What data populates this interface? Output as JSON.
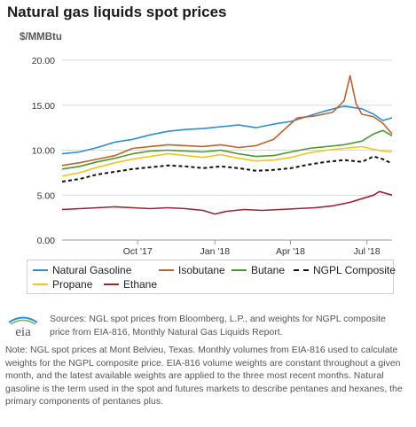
{
  "title": "Natural gas liquids spot prices",
  "unit_label": "$/MMBtu",
  "chart_data": {
    "type": "line",
    "title": "Natural gas liquids spot prices",
    "ylabel": "$/MMBtu",
    "xlabel": "",
    "ylim": [
      0,
      20
    ],
    "yticks": [
      "0.00",
      "5.00",
      "10.00",
      "15.00",
      "20.00"
    ],
    "x_range": [
      "2017-07-03",
      "2018-07-31"
    ],
    "xticks": [
      {
        "date": "2017-10-01",
        "label": "Oct '17"
      },
      {
        "date": "2018-01-01",
        "label": "Jan '18"
      },
      {
        "date": "2018-04-01",
        "label": "Apr '18"
      },
      {
        "date": "2018-07-01",
        "label": "Jul '18"
      }
    ],
    "grid": "horizontal",
    "legend_position": "bottom",
    "series": [
      {
        "name": "Natural Gasoline",
        "color": "#2b8fd5",
        "dash": false,
        "points": [
          [
            "2017-07-03",
            9.6
          ],
          [
            "2017-07-24",
            9.8
          ],
          [
            "2017-08-14",
            10.3
          ],
          [
            "2017-09-04",
            10.9
          ],
          [
            "2017-09-25",
            11.2
          ],
          [
            "2017-10-16",
            11.7
          ],
          [
            "2017-11-06",
            12.1
          ],
          [
            "2017-11-27",
            12.3
          ],
          [
            "2017-12-18",
            12.4
          ],
          [
            "2018-01-08",
            12.6
          ],
          [
            "2018-01-29",
            12.8
          ],
          [
            "2018-02-19",
            12.5
          ],
          [
            "2018-03-12",
            12.9
          ],
          [
            "2018-04-02",
            13.2
          ],
          [
            "2018-04-23",
            13.8
          ],
          [
            "2018-05-14",
            14.4
          ],
          [
            "2018-06-04",
            14.9
          ],
          [
            "2018-06-25",
            14.6
          ],
          [
            "2018-07-09",
            14.0
          ],
          [
            "2018-07-20",
            13.3
          ],
          [
            "2018-07-31",
            13.6
          ]
        ]
      },
      {
        "name": "Isobutane",
        "color": "#c0622a",
        "dash": false,
        "points": [
          [
            "2017-07-03",
            8.3
          ],
          [
            "2017-07-24",
            8.6
          ],
          [
            "2017-08-14",
            9.0
          ],
          [
            "2017-09-04",
            9.4
          ],
          [
            "2017-09-25",
            10.2
          ],
          [
            "2017-10-16",
            10.4
          ],
          [
            "2017-11-06",
            10.6
          ],
          [
            "2017-11-27",
            10.5
          ],
          [
            "2017-12-18",
            10.4
          ],
          [
            "2018-01-08",
            10.6
          ],
          [
            "2018-01-29",
            10.3
          ],
          [
            "2018-02-19",
            10.5
          ],
          [
            "2018-03-12",
            11.2
          ],
          [
            "2018-03-26",
            12.4
          ],
          [
            "2018-04-09",
            13.6
          ],
          [
            "2018-04-30",
            13.8
          ],
          [
            "2018-05-21",
            14.2
          ],
          [
            "2018-06-04",
            15.5
          ],
          [
            "2018-06-11",
            18.3
          ],
          [
            "2018-06-18",
            15.2
          ],
          [
            "2018-06-25",
            14.0
          ],
          [
            "2018-07-09",
            13.7
          ],
          [
            "2018-07-20",
            13.0
          ],
          [
            "2018-07-31",
            11.8
          ]
        ]
      },
      {
        "name": "Butane",
        "color": "#4a9a2a",
        "dash": false,
        "points": [
          [
            "2017-07-03",
            7.9
          ],
          [
            "2017-07-24",
            8.2
          ],
          [
            "2017-08-14",
            8.7
          ],
          [
            "2017-09-04",
            9.1
          ],
          [
            "2017-09-25",
            9.6
          ],
          [
            "2017-10-16",
            9.9
          ],
          [
            "2017-11-06",
            10.0
          ],
          [
            "2017-11-27",
            9.9
          ],
          [
            "2017-12-18",
            9.8
          ],
          [
            "2018-01-08",
            10.0
          ],
          [
            "2018-01-29",
            9.6
          ],
          [
            "2018-02-19",
            9.3
          ],
          [
            "2018-03-12",
            9.4
          ],
          [
            "2018-04-02",
            9.8
          ],
          [
            "2018-04-23",
            10.2
          ],
          [
            "2018-05-14",
            10.4
          ],
          [
            "2018-06-04",
            10.6
          ],
          [
            "2018-06-25",
            11.0
          ],
          [
            "2018-07-09",
            11.8
          ],
          [
            "2018-07-20",
            12.2
          ],
          [
            "2018-07-31",
            11.6
          ]
        ]
      },
      {
        "name": "NGPL Composite",
        "color": "#111111",
        "dash": true,
        "points": [
          [
            "2017-07-03",
            6.5
          ],
          [
            "2017-07-24",
            6.8
          ],
          [
            "2017-08-14",
            7.3
          ],
          [
            "2017-09-04",
            7.6
          ],
          [
            "2017-09-25",
            7.9
          ],
          [
            "2017-10-16",
            8.1
          ],
          [
            "2017-11-06",
            8.3
          ],
          [
            "2017-11-27",
            8.2
          ],
          [
            "2017-12-18",
            8.0
          ],
          [
            "2018-01-08",
            8.2
          ],
          [
            "2018-01-29",
            8.0
          ],
          [
            "2018-02-19",
            7.7
          ],
          [
            "2018-03-12",
            7.8
          ],
          [
            "2018-04-02",
            8.0
          ],
          [
            "2018-04-23",
            8.4
          ],
          [
            "2018-05-14",
            8.7
          ],
          [
            "2018-06-04",
            8.9
          ],
          [
            "2018-06-25",
            8.7
          ],
          [
            "2018-07-09",
            9.3
          ],
          [
            "2018-07-20",
            9.0
          ],
          [
            "2018-07-31",
            8.5
          ]
        ]
      },
      {
        "name": "Propane",
        "color": "#f2c41b",
        "dash": false,
        "points": [
          [
            "2017-07-03",
            7.1
          ],
          [
            "2017-07-24",
            7.5
          ],
          [
            "2017-08-14",
            8.1
          ],
          [
            "2017-09-04",
            8.6
          ],
          [
            "2017-09-25",
            9.0
          ],
          [
            "2017-10-16",
            9.3
          ],
          [
            "2017-11-06",
            9.6
          ],
          [
            "2017-11-27",
            9.4
          ],
          [
            "2017-12-18",
            9.2
          ],
          [
            "2018-01-08",
            9.5
          ],
          [
            "2018-01-29",
            9.1
          ],
          [
            "2018-02-19",
            8.8
          ],
          [
            "2018-03-12",
            8.9
          ],
          [
            "2018-04-02",
            9.2
          ],
          [
            "2018-04-23",
            9.7
          ],
          [
            "2018-05-14",
            10.0
          ],
          [
            "2018-06-04",
            10.2
          ],
          [
            "2018-06-25",
            10.4
          ],
          [
            "2018-07-09",
            10.1
          ],
          [
            "2018-07-20",
            9.9
          ],
          [
            "2018-07-31",
            9.8
          ]
        ]
      },
      {
        "name": "Ethane",
        "color": "#9a2430",
        "dash": false,
        "points": [
          [
            "2017-07-03",
            3.4
          ],
          [
            "2017-07-24",
            3.5
          ],
          [
            "2017-08-14",
            3.6
          ],
          [
            "2017-09-04",
            3.7
          ],
          [
            "2017-09-25",
            3.6
          ],
          [
            "2017-10-16",
            3.5
          ],
          [
            "2017-11-06",
            3.6
          ],
          [
            "2017-11-27",
            3.5
          ],
          [
            "2017-12-18",
            3.3
          ],
          [
            "2018-01-01",
            2.9
          ],
          [
            "2018-01-15",
            3.2
          ],
          [
            "2018-02-05",
            3.4
          ],
          [
            "2018-02-26",
            3.3
          ],
          [
            "2018-03-19",
            3.4
          ],
          [
            "2018-04-09",
            3.5
          ],
          [
            "2018-04-30",
            3.6
          ],
          [
            "2018-05-21",
            3.8
          ],
          [
            "2018-06-11",
            4.2
          ],
          [
            "2018-06-25",
            4.6
          ],
          [
            "2018-07-09",
            5.0
          ],
          [
            "2018-07-16",
            5.4
          ],
          [
            "2018-07-31",
            5.0
          ]
        ]
      }
    ]
  },
  "legend": [
    {
      "label": "Natural Gasoline",
      "color": "#2b8fd5",
      "dash": false
    },
    {
      "label": "Isobutane",
      "color": "#c0622a",
      "dash": false
    },
    {
      "label": "Butane",
      "color": "#4a9a2a",
      "dash": false
    },
    {
      "label": "NGPL Composite",
      "color": "#111111",
      "dash": true
    },
    {
      "label": "Propane",
      "color": "#f2c41b",
      "dash": false
    },
    {
      "label": "Ethane",
      "color": "#9a2430",
      "dash": false
    }
  ],
  "logo_text": "eia",
  "sources": "Sources: NGL spot prices from Bloomberg, L.P., and weights for NGPL composite price from EIA-816, Monthly Natural Gas Liquids Report.",
  "note": "Note: NGL spot prices at Mont Belvieu, Texas. Monthly volumes from EIA-816 used to calculate weights for the NGPL composite price. EIA-816 volume weights are constant throughout a given month, and the latest available weights are applied to the three most recent months. Natural gasoline is the term used in the spot and futures markets to describe pentanes and hexanes, the primary components of pentanes plus."
}
